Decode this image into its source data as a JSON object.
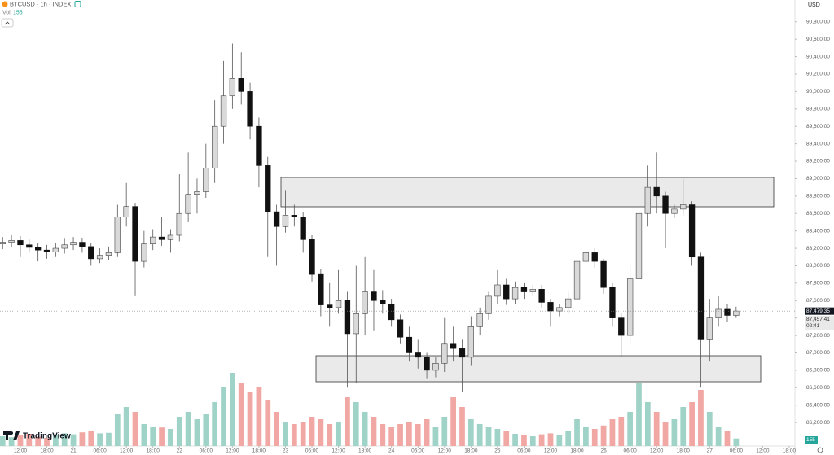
{
  "chart_data": {
    "type": "candlestick",
    "title": "BTCUSD · 1h · INDEX",
    "volume_label": "Vol",
    "currency": "USD",
    "brand": "TradingView",
    "countdown": "02:41",
    "last_price": {
      "value": 87479.35,
      "label": "87,479.35"
    },
    "mark_price": {
      "value": 87457.41,
      "label": "87,457.41"
    },
    "volume_last": 155,
    "x": [
      8,
      10,
      12,
      14,
      16,
      18,
      20,
      22,
      24,
      26,
      28,
      30,
      32,
      34,
      36,
      38,
      40,
      42,
      44,
      46,
      48,
      50,
      52,
      54,
      56,
      58,
      60,
      62,
      64,
      66,
      68,
      70,
      72,
      74,
      76,
      78,
      80,
      82,
      84,
      86,
      88,
      90,
      92,
      94,
      96,
      98,
      100,
      102,
      104,
      106,
      108,
      110,
      112,
      114,
      116,
      118,
      120,
      122,
      124,
      126,
      128,
      130,
      132,
      134,
      136,
      138,
      140,
      142,
      144,
      146,
      148,
      150,
      152,
      154,
      156,
      158,
      160,
      162,
      164,
      166,
      168,
      170,
      172,
      174
    ],
    "open": [
      88250,
      88270,
      88290,
      88240,
      88210,
      88180,
      88160,
      88200,
      88240,
      88270,
      88220,
      88080,
      88120,
      88150,
      88560,
      88680,
      88050,
      88250,
      88330,
      88300,
      88350,
      88600,
      88820,
      88850,
      89120,
      89600,
      89950,
      90150,
      90000,
      89600,
      89150,
      88620,
      88450,
      88580,
      88560,
      88300,
      87900,
      87550,
      87520,
      87600,
      87220,
      87450,
      87700,
      87600,
      87560,
      87380,
      87180,
      87000,
      86950,
      86800,
      86880,
      87100,
      87050,
      86950,
      87300,
      87450,
      87650,
      87780,
      87620,
      87750,
      87700,
      87730,
      87580,
      87480,
      87520,
      87620,
      88050,
      88150,
      88050,
      87750,
      87400,
      87200,
      87850,
      88600,
      88900,
      88800,
      88600,
      88650,
      88700,
      88100,
      87150,
      87400,
      87500,
      87430
    ],
    "high": [
      88330,
      88350,
      88340,
      88300,
      88260,
      88240,
      88260,
      88310,
      88330,
      88320,
      88260,
      88200,
      88220,
      88700,
      88950,
      88720,
      88400,
      88420,
      88560,
      88420,
      89050,
      89300,
      89000,
      89400,
      89900,
      90350,
      90550,
      90450,
      90100,
      89700,
      89250,
      88700,
      88860,
      88700,
      88620,
      88350,
      87960,
      87800,
      87950,
      87700,
      88000,
      88100,
      87950,
      87720,
      87620,
      87440,
      87300,
      87150,
      87000,
      86950,
      87400,
      87300,
      87150,
      87420,
      87520,
      87700,
      87950,
      87850,
      87820,
      87800,
      87780,
      87780,
      87620,
      87560,
      87700,
      88350,
      88250,
      88200,
      88080,
      87800,
      87450,
      88000,
      89200,
      89150,
      89300,
      88850,
      88700,
      89000,
      88740,
      88150,
      87620,
      87650,
      87560,
      87530
    ],
    "low": [
      88190,
      88210,
      88100,
      88150,
      88050,
      88080,
      88100,
      88140,
      88180,
      88150,
      88000,
      88030,
      88060,
      88100,
      88450,
      87650,
      87980,
      88180,
      88230,
      88150,
      88280,
      88500,
      88600,
      88780,
      88950,
      89400,
      89800,
      89850,
      89450,
      88900,
      88100,
      88000,
      88380,
      88450,
      88150,
      87820,
      87420,
      87300,
      87450,
      86600,
      86650,
      87200,
      87250,
      87450,
      87300,
      87100,
      86900,
      86820,
      86700,
      86720,
      86780,
      86900,
      86550,
      86850,
      87200,
      87380,
      87560,
      87550,
      87560,
      87620,
      87650,
      87520,
      87300,
      87420,
      87450,
      87560,
      87950,
      87980,
      87680,
      87300,
      86950,
      87100,
      87700,
      88450,
      88600,
      88200,
      88550,
      88580,
      88000,
      86600,
      86900,
      87300,
      87350,
      87400
    ],
    "close": [
      88270,
      88290,
      88240,
      88210,
      88180,
      88160,
      88200,
      88240,
      88270,
      88220,
      88080,
      88120,
      88150,
      88560,
      88680,
      88050,
      88250,
      88330,
      88300,
      88350,
      88600,
      88820,
      88850,
      89120,
      89600,
      89950,
      90150,
      90000,
      89600,
      89150,
      88620,
      88450,
      88580,
      88560,
      88300,
      87900,
      87550,
      87520,
      87600,
      87220,
      87450,
      87700,
      87600,
      87560,
      87380,
      87180,
      87000,
      86950,
      86800,
      86880,
      87100,
      87050,
      86950,
      87300,
      87450,
      87650,
      87780,
      87620,
      87750,
      87700,
      87730,
      87580,
      87480,
      87520,
      87620,
      88050,
      88150,
      88050,
      87750,
      87400,
      87200,
      87850,
      88600,
      88900,
      88800,
      88600,
      88650,
      88700,
      88100,
      87150,
      87400,
      87500,
      87430,
      87480
    ],
    "volume": [
      200,
      180,
      220,
      250,
      190,
      170,
      230,
      260,
      240,
      280,
      300,
      260,
      270,
      650,
      800,
      700,
      450,
      400,
      380,
      350,
      600,
      700,
      550,
      650,
      900,
      1200,
      1500,
      1300,
      1100,
      1200,
      950,
      700,
      500,
      450,
      500,
      600,
      550,
      450,
      500,
      1000,
      900,
      700,
      600,
      450,
      400,
      450,
      500,
      450,
      550,
      400,
      600,
      1000,
      800,
      550,
      450,
      400,
      350,
      300,
      250,
      220,
      200,
      240,
      260,
      220,
      300,
      550,
      400,
      350,
      420,
      550,
      600,
      700,
      1300,
      900,
      700,
      500,
      550,
      800,
      900,
      1150,
      700,
      400,
      300,
      155
    ],
    "up_color": "#d9d9d9",
    "down_color": "#111111",
    "volume_up_color": "#9fd3c7",
    "volume_down_color": "#f1a7a3",
    "xlim": [
      7.4,
      187.3
    ],
    "xticks": [
      {
        "value": 12,
        "label": "12:00"
      },
      {
        "value": 18,
        "label": "18:00"
      },
      {
        "value": 24,
        "label": "21"
      },
      {
        "value": 30,
        "label": "06:00"
      },
      {
        "value": 36,
        "label": "12:00"
      },
      {
        "value": 42,
        "label": "18:00"
      },
      {
        "value": 48,
        "label": "22"
      },
      {
        "value": 54,
        "label": "06:00"
      },
      {
        "value": 60,
        "label": "12:00"
      },
      {
        "value": 66,
        "label": "18:00"
      },
      {
        "value": 72,
        "label": "23"
      },
      {
        "value": 78,
        "label": "06:00"
      },
      {
        "value": 84,
        "label": "12:00"
      },
      {
        "value": 90,
        "label": "18:00"
      },
      {
        "value": 96,
        "label": "24"
      },
      {
        "value": 102,
        "label": "06:00"
      },
      {
        "value": 108,
        "label": "12:00"
      },
      {
        "value": 114,
        "label": "18:00"
      },
      {
        "value": 120,
        "label": "25"
      },
      {
        "value": 126,
        "label": "06:00"
      },
      {
        "value": 132,
        "label": "12:00"
      },
      {
        "value": 138,
        "label": "18:00"
      },
      {
        "value": 144,
        "label": "26"
      },
      {
        "value": 150,
        "label": "06:00"
      },
      {
        "value": 156,
        "label": "12:00"
      },
      {
        "value": 162,
        "label": "18:00"
      },
      {
        "value": 168,
        "label": "27"
      },
      {
        "value": 174,
        "label": "06:00"
      },
      {
        "value": 180,
        "label": "12:00"
      },
      {
        "value": 186,
        "label": "18:00"
      }
    ],
    "ylim": [
      85930,
      91050
    ],
    "yticks": [
      {
        "value": 86200,
        "label": "86,200.00"
      },
      {
        "value": 86400,
        "label": "86,400.00"
      },
      {
        "value": 86600,
        "label": "86,600.00"
      },
      {
        "value": 86800,
        "label": "86,800.00"
      },
      {
        "value": 87000,
        "label": "87,000.00"
      },
      {
        "value": 87200,
        "label": "87,200.00"
      },
      {
        "value": 87400,
        "label": "87,400.00"
      },
      {
        "value": 87600,
        "label": "87,600.00"
      },
      {
        "value": 87800,
        "label": "87,800.00"
      },
      {
        "value": 88000,
        "label": "88,000.00"
      },
      {
        "value": 88200,
        "label": "88,200.00"
      },
      {
        "value": 88400,
        "label": "88,400.00"
      },
      {
        "value": 88600,
        "label": "88,600.00"
      },
      {
        "value": 88800,
        "label": "88,800.00"
      },
      {
        "value": 89000,
        "label": "89,000.00"
      },
      {
        "value": 89200,
        "label": "89,200.00"
      },
      {
        "value": 89400,
        "label": "89,400.00"
      },
      {
        "value": 89600,
        "label": "89,600.00"
      },
      {
        "value": 89800,
        "label": "89,800.00"
      },
      {
        "value": 90000,
        "label": "90,000.00"
      },
      {
        "value": 90200,
        "label": "90,200.00"
      },
      {
        "value": 90400,
        "label": "90,400.00"
      },
      {
        "value": 90600,
        "label": "90,600.00"
      },
      {
        "value": 90800,
        "label": "90,800.00"
      }
    ]
  }
}
